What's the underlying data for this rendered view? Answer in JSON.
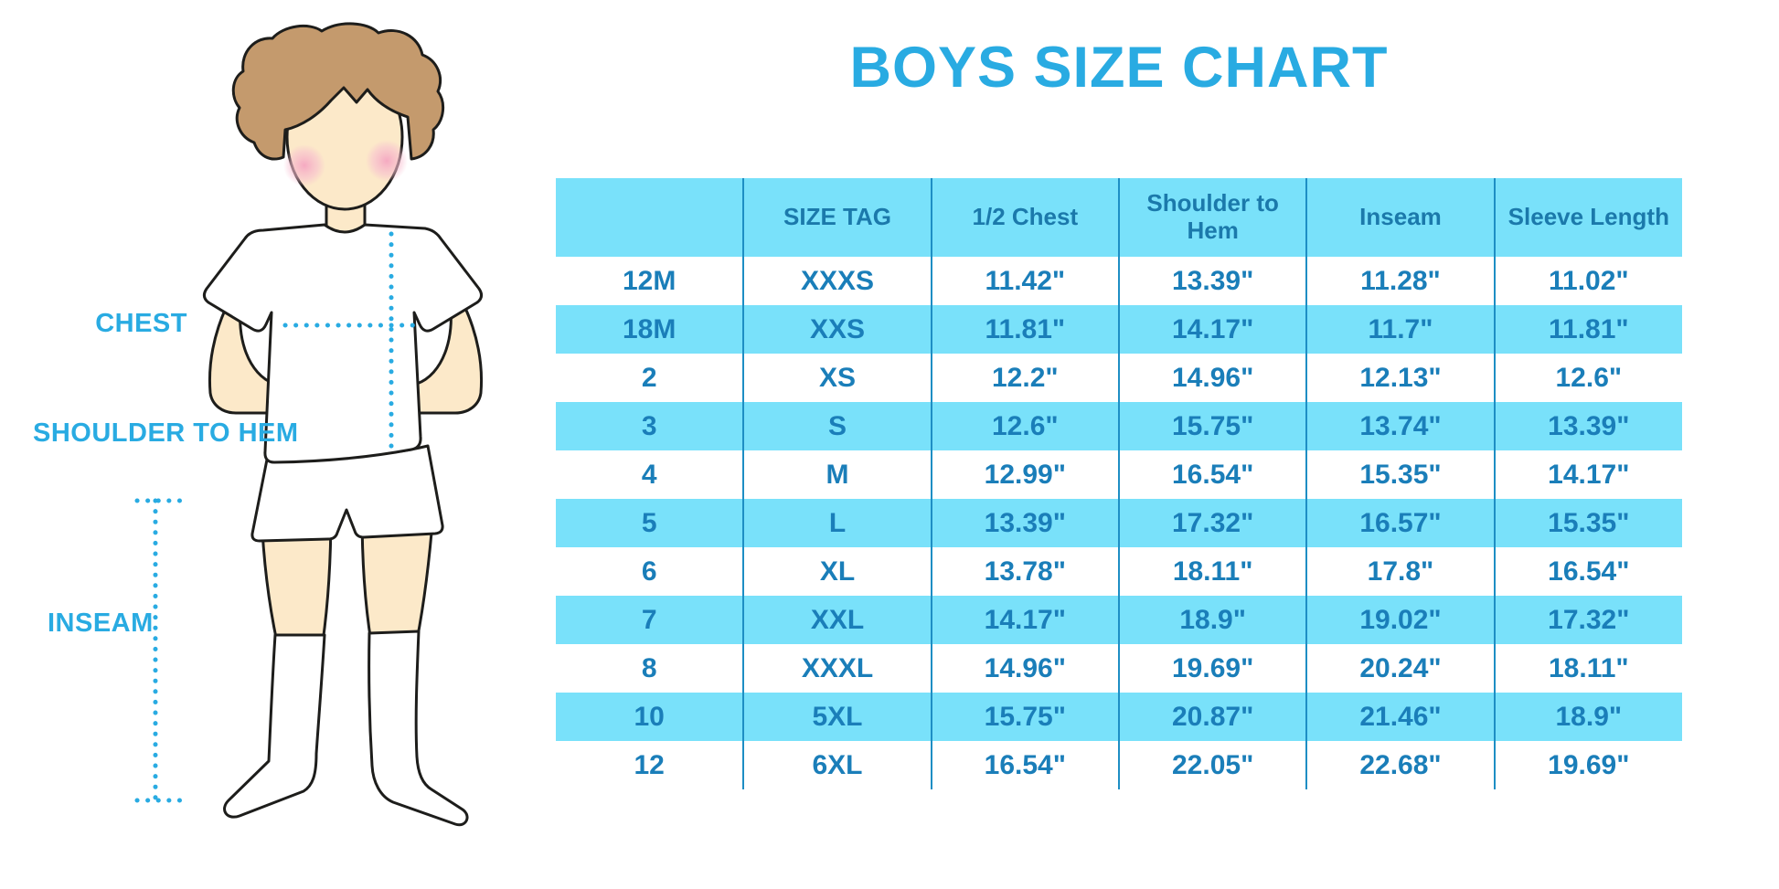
{
  "chart_data": {
    "type": "table",
    "title": "BOYS SIZE CHART",
    "columns": [
      "",
      "SIZE TAG",
      "1/2 Chest",
      "Shoulder to Hem",
      "Inseam",
      "Sleeve Length"
    ],
    "rows": [
      [
        "12M",
        "XXXS",
        "11.42\"",
        "13.39\"",
        "11.28\"",
        "11.02\""
      ],
      [
        "18M",
        "XXS",
        "11.81\"",
        "14.17\"",
        "11.7\"",
        "11.81\""
      ],
      [
        "2",
        "XS",
        "12.2\"",
        "14.96\"",
        "12.13\"",
        "12.6\""
      ],
      [
        "3",
        "S",
        "12.6\"",
        "15.75\"",
        "13.74\"",
        "13.39\""
      ],
      [
        "4",
        "M",
        "12.99\"",
        "16.54\"",
        "15.35\"",
        "14.17\""
      ],
      [
        "5",
        "L",
        "13.39\"",
        "17.32\"",
        "16.57\"",
        "15.35\""
      ],
      [
        "6",
        "XL",
        "13.78\"",
        "18.11\"",
        "17.8\"",
        "16.54\""
      ],
      [
        "7",
        "XXL",
        "14.17\"",
        "18.9\"",
        "19.02\"",
        "17.32\""
      ],
      [
        "8",
        "XXXL",
        "14.96\"",
        "19.69\"",
        "20.24\"",
        "18.11\""
      ],
      [
        "10",
        "5XL",
        "15.75\"",
        "20.87\"",
        "21.46\"",
        "18.9\""
      ],
      [
        "12",
        "6XL",
        "16.54\"",
        "22.05\"",
        "22.68\"",
        "19.69\""
      ]
    ],
    "layout_hints": {
      "zebra_striping": "odd data rows and header highlighted",
      "grid": "vertical column separators only, no outer border"
    }
  },
  "diagram": {
    "measurement_labels": {
      "chest": "CHEST",
      "shoulder_to_hem": "SHOULDER TO HEM",
      "inseam": "INSEAM"
    }
  },
  "colors": {
    "title_accent": "#29abe2",
    "table_body_text": "#1a7eb9",
    "table_header_text": "#1b79ab",
    "highlight_row_bg": "#79e1fa",
    "grid_line": "#1e8ec4",
    "measure_label_blue": "#29abe2",
    "dotted_line_blue": "#29abe2",
    "skin": "#fce9c9",
    "hair_brown": "#c49a6d",
    "cheek_pink": "#f5a9c1",
    "garment_white": "#ffffff",
    "outline_dark": "#1d1d1b"
  }
}
